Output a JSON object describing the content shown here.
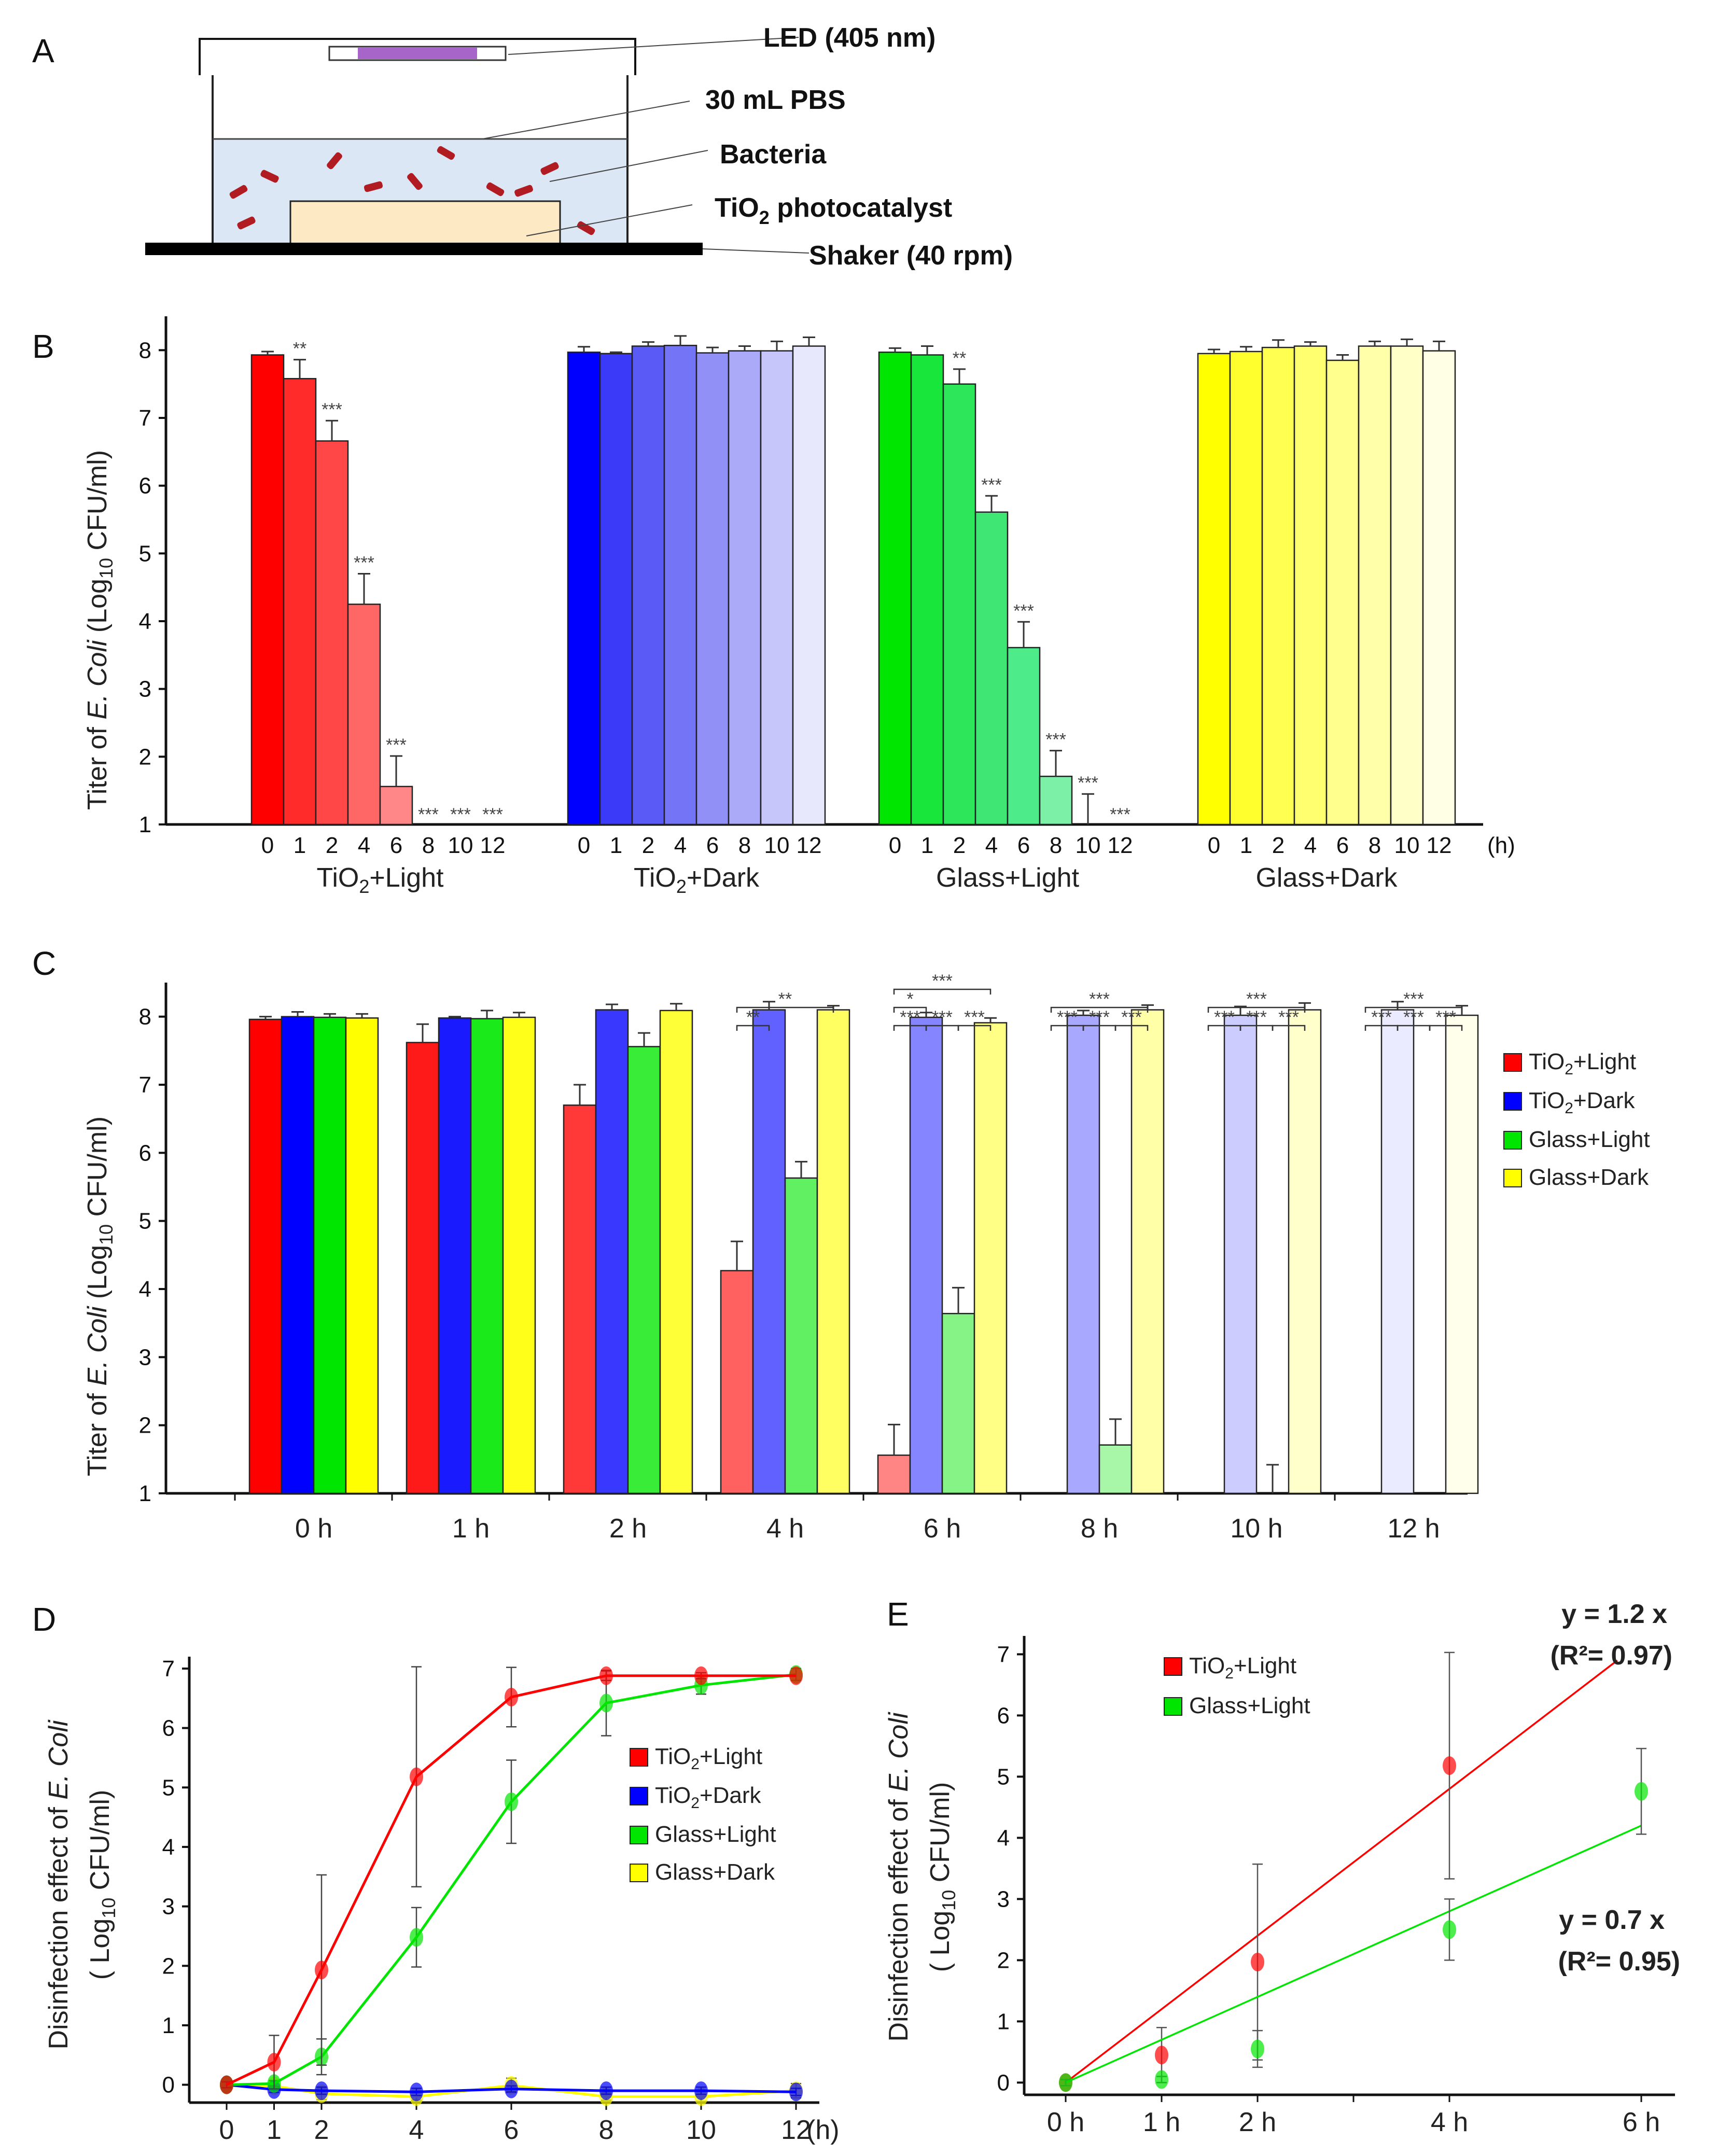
{
  "panels": {
    "A": "A",
    "B": "B",
    "C": "C",
    "D": "D",
    "E": "E"
  },
  "schematic": {
    "led": "LED (405 nm)",
    "pbs": "30 mL PBS",
    "bacteria": "Bacteria",
    "tio2_main": "TiO",
    "tio2_sub": "2",
    "tio2_rest": " photocatalyst",
    "shaker": "Shaker (40 rpm)",
    "colors": {
      "led": "#a865c9",
      "liquid": "#dbe7f5",
      "catalyst": "#fde9c4",
      "bacteria": "#b01c22"
    }
  },
  "ylabel_titer": [
    "Titer of ",
    "E. Coli",
    " (Log",
    "10",
    " CFU/ml)"
  ],
  "ylabel_disinfection": [
    "Disinfection effect of ",
    "E. Coli",
    "( Log",
    "10",
    " CFU/ml)"
  ],
  "group_names": {
    "tio2_light": [
      "TiO",
      "2",
      "+Light"
    ],
    "tio2_dark": [
      "TiO",
      "2",
      "+Dark"
    ],
    "glass_light": [
      "Glass+Light"
    ],
    "glass_dark": [
      "Glass+Dark"
    ]
  },
  "chart_data": [
    {
      "panel": "B",
      "type": "bar",
      "ylim": [
        1,
        8.5
      ],
      "yticks": [
        1,
        2,
        3,
        4,
        5,
        6,
        7,
        8
      ],
      "time_labels": [
        "0",
        "1",
        "2",
        "4",
        "6",
        "8",
        "10",
        "12"
      ],
      "unit_label": "(h)",
      "series": [
        {
          "group": "tio2_light",
          "values": [
            7.93,
            7.58,
            6.66,
            4.25,
            1.56,
            null,
            null,
            null
          ],
          "errors": [
            0.05,
            0.28,
            0.3,
            0.45,
            0.45,
            0,
            0,
            0
          ],
          "sig": [
            "",
            "**",
            "***",
            "***",
            "***",
            "***",
            "***",
            "***"
          ],
          "colors": [
            "#ff0000",
            "#ff2a2a",
            "#ff4747",
            "#ff6666",
            "#ff8787",
            "#ffa6a6",
            "#ffc6c6",
            "#ffe3e3"
          ]
        },
        {
          "group": "tio2_dark",
          "values": [
            7.97,
            7.95,
            8.06,
            8.07,
            7.96,
            7.99,
            7.99,
            8.06
          ],
          "errors": [
            0.08,
            0.02,
            0.06,
            0.14,
            0.08,
            0.07,
            0.14,
            0.13
          ],
          "sig": [
            "",
            "",
            "",
            "",
            "",
            "",
            "",
            ""
          ],
          "colors": [
            "#0000ff",
            "#3a3af8",
            "#5a5af6",
            "#7474f6",
            "#9090f6",
            "#aaaaf8",
            "#c6c6fa",
            "#e8e8fd"
          ]
        },
        {
          "group": "glass_light",
          "values": [
            7.97,
            7.93,
            7.5,
            5.61,
            3.61,
            1.71,
            1.0,
            null
          ],
          "errors": [
            0.06,
            0.13,
            0.22,
            0.24,
            0.38,
            0.38,
            0.45,
            0
          ],
          "sig": [
            "",
            "",
            "**",
            "***",
            "***",
            "***",
            "***",
            "***"
          ],
          "colors": [
            "#00e600",
            "#19e63a",
            "#2ee65a",
            "#3fe673",
            "#4deb8a",
            "#7df0a8",
            "#b8f5cf",
            "#e3fbec"
          ]
        },
        {
          "group": "glass_dark",
          "values": [
            7.95,
            7.98,
            8.04,
            8.06,
            7.85,
            8.06,
            8.06,
            7.99
          ],
          "errors": [
            0.06,
            0.07,
            0.11,
            0.06,
            0.08,
            0.07,
            0.1,
            0.14
          ],
          "sig": [
            "",
            "",
            "",
            "",
            "",
            "",
            "",
            ""
          ],
          "colors": [
            "#ffff00",
            "#ffff2e",
            "#ffff52",
            "#ffff70",
            "#ffff8e",
            "#ffffaa",
            "#ffffc8",
            "#ffffe6"
          ]
        }
      ]
    },
    {
      "panel": "C",
      "type": "bar",
      "ylim": [
        1,
        8.5
      ],
      "yticks": [
        1,
        2,
        3,
        4,
        5,
        6,
        7,
        8
      ],
      "categories": [
        "0 h",
        "1 h",
        "2 h",
        "4 h",
        "6 h",
        "8 h",
        "10 h",
        "12 h"
      ],
      "series": [
        {
          "name": "TiO2+Light",
          "values": [
            7.96,
            7.62,
            6.7,
            4.27,
            1.56,
            null,
            null,
            null
          ],
          "errors": [
            0.04,
            0.27,
            0.3,
            0.43,
            0.45,
            0,
            0,
            0
          ]
        },
        {
          "name": "TiO2+Dark",
          "values": [
            8.0,
            7.98,
            8.1,
            8.1,
            7.99,
            8.02,
            8.02,
            8.1
          ],
          "errors": [
            0.07,
            0.02,
            0.08,
            0.12,
            0.07,
            0.07,
            0.13,
            0.12
          ]
        },
        {
          "name": "Glass+Light",
          "values": [
            7.99,
            7.97,
            7.56,
            5.63,
            3.64,
            1.71,
            1.0,
            null
          ],
          "errors": [
            0.05,
            0.12,
            0.2,
            0.24,
            0.38,
            0.38,
            0.42,
            0
          ]
        },
        {
          "name": "Glass+Dark",
          "values": [
            7.98,
            7.99,
            8.09,
            8.1,
            7.91,
            8.1,
            8.1,
            8.02
          ],
          "errors": [
            0.06,
            0.07,
            0.1,
            0.06,
            0.07,
            0.07,
            0.1,
            0.14
          ]
        }
      ],
      "brackets": [
        {
          "cat": 3,
          "from": 0,
          "to": 1,
          "level": 0,
          "label": "**"
        },
        {
          "cat": 3,
          "from": 0,
          "to": 3,
          "level": 1,
          "label": "**"
        },
        {
          "cat": 4,
          "from": 0,
          "to": 1,
          "level": 0,
          "label": "***"
        },
        {
          "cat": 4,
          "from": 1,
          "to": 2,
          "level": 0,
          "label": "***"
        },
        {
          "cat": 4,
          "from": 2,
          "to": 3,
          "level": 0,
          "label": "***"
        },
        {
          "cat": 4,
          "from": 0,
          "to": 1,
          "level": 1,
          "label": "*"
        },
        {
          "cat": 4,
          "from": 0,
          "to": 3,
          "level": 2,
          "label": "***"
        },
        {
          "cat": 5,
          "from": 0,
          "to": 1,
          "level": 0,
          "label": "***"
        },
        {
          "cat": 5,
          "from": 1,
          "to": 2,
          "level": 0,
          "label": "***"
        },
        {
          "cat": 5,
          "from": 2,
          "to": 3,
          "level": 0,
          "label": "***"
        },
        {
          "cat": 5,
          "from": 0,
          "to": 3,
          "level": 1,
          "label": "***"
        },
        {
          "cat": 6,
          "from": 0,
          "to": 1,
          "level": 0,
          "label": "***"
        },
        {
          "cat": 6,
          "from": 1,
          "to": 2,
          "level": 0,
          "label": "***"
        },
        {
          "cat": 6,
          "from": 2,
          "to": 3,
          "level": 0,
          "label": "***"
        },
        {
          "cat": 6,
          "from": 0,
          "to": 3,
          "level": 1,
          "label": "***"
        },
        {
          "cat": 7,
          "from": 0,
          "to": 1,
          "level": 0,
          "label": "***"
        },
        {
          "cat": 7,
          "from": 1,
          "to": 2,
          "level": 0,
          "label": "***"
        },
        {
          "cat": 7,
          "from": 2,
          "to": 3,
          "level": 0,
          "label": "***"
        },
        {
          "cat": 7,
          "from": 0,
          "to": 3,
          "level": 1,
          "label": "***"
        }
      ]
    },
    {
      "panel": "D",
      "type": "line",
      "x": [
        0,
        1,
        2,
        4,
        6,
        8,
        10,
        12
      ],
      "xlabels": [
        "0",
        "1",
        "2",
        "4",
        "6",
        "8",
        "10",
        "12"
      ],
      "unit_label": "(h)",
      "ylim": [
        -0.3,
        7.2
      ],
      "yticks": [
        0,
        1,
        2,
        3,
        4,
        5,
        6,
        7
      ],
      "legend_position": "right",
      "series": [
        {
          "name": "TiO2+Light",
          "color": "#ff0000",
          "values": [
            0,
            0.38,
            1.93,
            5.18,
            6.52,
            6.88,
            6.88,
            6.88
          ],
          "errors": [
            0.05,
            0.45,
            1.6,
            1.85,
            0.5,
            0.08,
            0.05,
            0
          ]
        },
        {
          "name": "TiO2+Dark",
          "color": "#0000ff",
          "values": [
            0,
            -0.08,
            -0.1,
            -0.12,
            -0.07,
            -0.1,
            -0.1,
            -0.12
          ],
          "errors": [
            0.05,
            0.05,
            0.06,
            0.06,
            0.05,
            0.06,
            0.06,
            0.06
          ]
        },
        {
          "name": "Glass+Light",
          "color": "#00e600",
          "values": [
            0,
            0.02,
            0.47,
            2.48,
            4.76,
            6.42,
            6.72,
            6.9
          ],
          "errors": [
            0.05,
            0.05,
            0.3,
            0.5,
            0.7,
            0.55,
            0.15,
            0.1
          ]
        },
        {
          "name": "Glass+Dark",
          "color": "#ffff00",
          "values": [
            0,
            -0.02,
            -0.15,
            -0.2,
            -0.01,
            -0.2,
            -0.2,
            -0.1
          ],
          "errors": [
            0.05,
            0.08,
            0.1,
            0.06,
            0.12,
            0.06,
            0.08,
            0.12
          ]
        }
      ]
    },
    {
      "panel": "E",
      "type": "scatter",
      "x": [
        0,
        1,
        2,
        4,
        6
      ],
      "xlabels": [
        "0 h",
        "1 h",
        "2 h",
        "4 h",
        "6 h"
      ],
      "ylim": [
        -0.2,
        7.3
      ],
      "yticks": [
        0,
        1,
        2,
        3,
        4,
        5,
        6,
        7
      ],
      "legend_position": "top-left",
      "series": [
        {
          "name": "TiO2+Light",
          "color": "#ff0000",
          "values": [
            0,
            0.45,
            1.97,
            5.18,
            null
          ],
          "errors": [
            0.05,
            0.45,
            1.6,
            1.85,
            0
          ],
          "fit": {
            "slope": 1.2,
            "equation": "y = 1.2 x",
            "r2": "(R²= 0.97)"
          }
        },
        {
          "name": "Glass+Light",
          "color": "#00e600",
          "values": [
            0,
            0.05,
            0.55,
            2.5,
            4.76
          ],
          "errors": [
            0.05,
            0.05,
            0.3,
            0.5,
            0.7
          ],
          "fit": {
            "slope": 0.7,
            "equation": "y = 0.7 x",
            "r2": "(R²= 0.95)"
          }
        }
      ]
    }
  ]
}
